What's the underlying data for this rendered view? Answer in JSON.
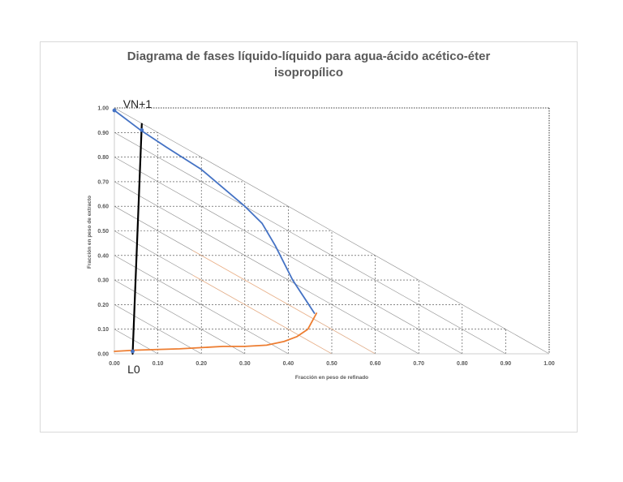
{
  "chart_data": {
    "type": "line",
    "title_lines": [
      "Diagrama de fases líquido-líquido para agua-ácido acético-éter",
      "isopropílico"
    ],
    "xlabel": "Fracción en peso de refinado",
    "ylabel": "Fracción en peso de extracto",
    "xlim": [
      0,
      1
    ],
    "ylim": [
      0,
      1
    ],
    "x_ticks": [
      "0.00",
      "0.10",
      "0.20",
      "0.30",
      "0.40",
      "0.50",
      "0.60",
      "0.70",
      "0.80",
      "0.90",
      "1.00"
    ],
    "y_ticks": [
      "0.00",
      "0.10",
      "0.20",
      "0.30",
      "0.40",
      "0.50",
      "0.60",
      "0.70",
      "0.80",
      "0.90",
      "1.00"
    ],
    "grid": true,
    "series": [
      {
        "color": "#4472c4",
        "points": [
          [
            0.0,
            0.99
          ],
          [
            0.06,
            0.91
          ],
          [
            0.12,
            0.84
          ],
          [
            0.2,
            0.75
          ],
          [
            0.3,
            0.6
          ],
          [
            0.34,
            0.53
          ],
          [
            0.37,
            0.44
          ],
          [
            0.41,
            0.3
          ],
          [
            0.46,
            0.165
          ]
        ]
      },
      {
        "color": "#ed7d31",
        "points": [
          [
            0.0,
            0.01
          ],
          [
            0.05,
            0.015
          ],
          [
            0.15,
            0.02
          ],
          [
            0.25,
            0.03
          ],
          [
            0.3,
            0.03
          ],
          [
            0.35,
            0.035
          ],
          [
            0.39,
            0.05
          ],
          [
            0.42,
            0.07
          ],
          [
            0.445,
            0.1
          ],
          [
            0.465,
            0.165
          ]
        ]
      },
      {
        "color": "#000000",
        "points": [
          [
            0.042,
            0.0
          ],
          [
            0.063,
            0.935
          ]
        ]
      }
    ],
    "markers": [
      {
        "x": 0.0,
        "y": 0.99,
        "color": "#4472c4"
      },
      {
        "x": 0.063,
        "y": 0.91,
        "color": "#4472c4"
      },
      {
        "x": 0.042,
        "y": 0.01,
        "color": "#4472c4"
      }
    ],
    "annotations": [
      {
        "text": "VN+1",
        "x": 0.02,
        "y": 1.0
      },
      {
        "text": "L0",
        "x": 0.03,
        "y": -0.08
      }
    ]
  }
}
